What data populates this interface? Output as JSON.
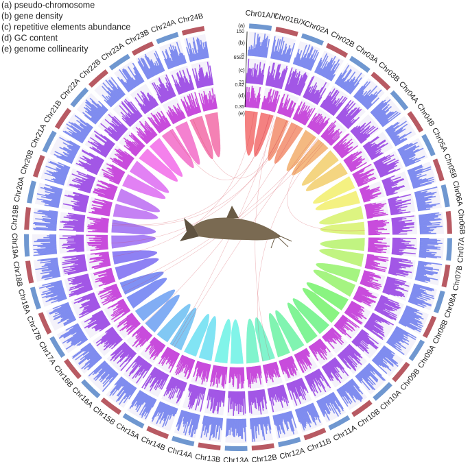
{
  "legend": [
    "(a) pseudo-chromosome",
    "(b) gene density",
    "(c) repetitive elements abundance",
    "(d) GC content",
    "(e) genome collinearity"
  ],
  "track_labels": [
    "(a)",
    "(b)",
    "(c)",
    "(d)",
    "(e)"
  ],
  "axis_labels": [
    "150",
    "0",
    "6582",
    "21",
    "0.42",
    "0.35"
  ],
  "chromosomes": [
    "Chr01A/Y",
    "Chr01B/X",
    "Chr02A",
    "Chr02B",
    "Chr03A",
    "Chr03B",
    "Chr04A",
    "Chr04B",
    "Chr05A",
    "Chr05B",
    "Chr06A",
    "Chr06B",
    "Chr07A",
    "Chr07B",
    "Chr08A",
    "Chr08B",
    "Chr09A",
    "Chr09B",
    "Chr10A",
    "Chr10B",
    "Chr11A",
    "Chr11B",
    "Chr12A",
    "Chr12B",
    "Chr13A",
    "Chr13B",
    "Chr14A",
    "Chr14B",
    "Chr15A",
    "Chr15B",
    "Chr16A",
    "Chr16B",
    "Chr17A",
    "Chr17B",
    "Chr18A",
    "Chr18B",
    "Chr19A",
    "Chr19B",
    "Chr20A",
    "Chr20B",
    "Chr21A",
    "Chr21B",
    "Chr22A",
    "Chr22B",
    "Chr23A",
    "Chr23B",
    "Chr24A",
    "Chr24B"
  ]
}
